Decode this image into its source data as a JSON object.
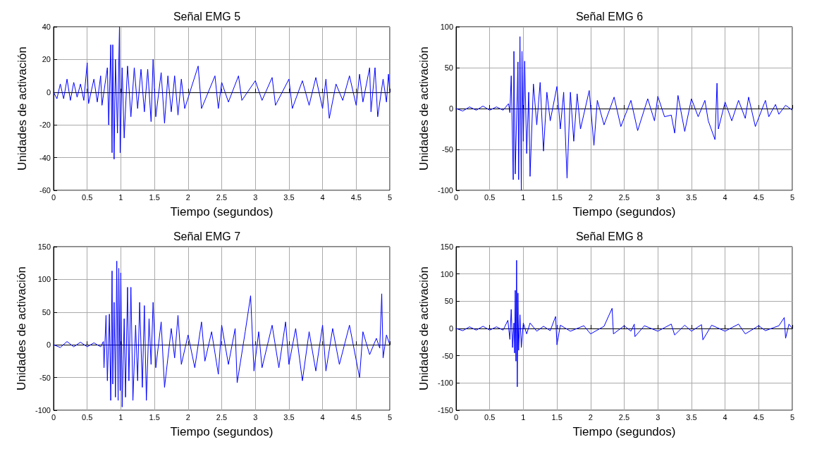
{
  "chart_data": [
    {
      "type": "line",
      "title": "Señal EMG 5",
      "xlabel": "Tiempo (segundos)",
      "ylabel": "Unidades de activación",
      "color": "#0000ff",
      "marker": "none",
      "line_style": "solid",
      "grid": true,
      "xlim": [
        0,
        5
      ],
      "xticks": [
        0,
        0.5,
        1,
        1.5,
        2,
        2.5,
        3,
        3.5,
        4,
        4.5,
        5
      ],
      "ylim": [
        -60,
        40
      ],
      "yticks": [
        -60,
        -40,
        -20,
        0,
        20,
        40
      ],
      "x": [
        0,
        0.05,
        0.1,
        0.15,
        0.2,
        0.25,
        0.3,
        0.35,
        0.4,
        0.45,
        0.5,
        0.52,
        0.6,
        0.65,
        0.7,
        0.72,
        0.8,
        0.82,
        0.85,
        0.87,
        0.88,
        0.9,
        0.92,
        0.95,
        0.98,
        0.99,
        1.02,
        1.05,
        1.1,
        1.15,
        1.2,
        1.25,
        1.3,
        1.35,
        1.4,
        1.45,
        1.48,
        1.52,
        1.6,
        1.65,
        1.7,
        1.75,
        1.8,
        1.85,
        1.9,
        1.95,
        2.15,
        2.2,
        2.4,
        2.45,
        2.5,
        2.6,
        2.75,
        2.8,
        3.0,
        3.1,
        3.25,
        3.3,
        3.5,
        3.55,
        3.7,
        3.8,
        3.9,
        4.0,
        4.05,
        4.1,
        4.2,
        4.3,
        4.4,
        4.5,
        4.55,
        4.6,
        4.7,
        4.72,
        4.78,
        4.82,
        4.9,
        4.95,
        4.98,
        5.0
      ],
      "values": [
        0,
        -4,
        5,
        -4,
        8,
        -5,
        6,
        -3,
        5,
        -5,
        18,
        -7,
        8,
        -6,
        10,
        -8,
        15,
        -20,
        29,
        -37,
        29,
        -41,
        20,
        -25,
        40,
        -37,
        15,
        -28,
        16,
        -15,
        15,
        -10,
        14,
        -12,
        14,
        -18,
        20,
        -15,
        12,
        -19,
        10,
        -12,
        10,
        -14,
        8,
        -10,
        16,
        -10,
        10,
        -10,
        6,
        -6,
        10,
        -5,
        7,
        -5,
        9,
        -8,
        8,
        -10,
        7,
        -8,
        9,
        -10,
        8,
        -16,
        5,
        -5,
        10,
        -8,
        11,
        -6,
        15,
        -12,
        15,
        -15,
        8,
        -6,
        11,
        0
      ]
    },
    {
      "type": "line",
      "title": "Señal EMG 6",
      "xlabel": "Tiempo (segundos)",
      "ylabel": "Unidades de activación",
      "color": "#0000ff",
      "marker": "none",
      "line_style": "solid",
      "grid": true,
      "xlim": [
        0,
        5
      ],
      "xticks": [
        0,
        0.5,
        1,
        1.5,
        2,
        2.5,
        3,
        3.5,
        4,
        4.5,
        5
      ],
      "ylim": [
        -100,
        100
      ],
      "yticks": [
        -100,
        -50,
        0,
        50,
        100
      ],
      "x": [
        0,
        0.1,
        0.2,
        0.3,
        0.4,
        0.5,
        0.6,
        0.7,
        0.78,
        0.8,
        0.82,
        0.85,
        0.86,
        0.88,
        0.92,
        0.93,
        0.95,
        0.97,
        0.98,
        1.0,
        1.02,
        1.05,
        1.08,
        1.1,
        1.15,
        1.2,
        1.25,
        1.3,
        1.35,
        1.4,
        1.5,
        1.55,
        1.6,
        1.65,
        1.7,
        1.75,
        1.8,
        1.85,
        1.98,
        2.05,
        2.1,
        2.2,
        2.35,
        2.45,
        2.6,
        2.7,
        2.85,
        2.95,
        3.0,
        3.1,
        3.2,
        3.25,
        3.3,
        3.4,
        3.5,
        3.6,
        3.7,
        3.75,
        3.85,
        3.88,
        3.9,
        4.0,
        4.1,
        4.2,
        4.3,
        4.35,
        4.45,
        4.6,
        4.65,
        4.75,
        4.8,
        4.9,
        5.0
      ],
      "values": [
        0,
        -3,
        2,
        -2,
        3,
        -2,
        2,
        -2,
        6,
        -5,
        40,
        -87,
        70,
        -80,
        57,
        -87,
        88,
        -100,
        70,
        -40,
        58,
        -55,
        20,
        -83,
        30,
        -20,
        32,
        -52,
        20,
        -15,
        27,
        -25,
        20,
        -85,
        20,
        -40,
        18,
        -25,
        22,
        -45,
        10,
        -20,
        14,
        -22,
        10,
        -27,
        12,
        -15,
        15,
        -10,
        -8,
        -30,
        16,
        -28,
        12,
        -10,
        10,
        -15,
        -38,
        31,
        -25,
        8,
        -15,
        10,
        -12,
        14,
        -22,
        10,
        -10,
        5,
        -7,
        4,
        -2
      ]
    },
    {
      "type": "line",
      "title": "Señal EMG 7",
      "xlabel": "Tiempo (segundos)",
      "ylabel": "Unidades de activación",
      "color": "#0000ff",
      "marker": "none",
      "line_style": "solid",
      "grid": true,
      "xlim": [
        0,
        5
      ],
      "xticks": [
        0,
        0.5,
        1,
        1.5,
        2,
        2.5,
        3,
        3.5,
        4,
        4.5,
        5
      ],
      "ylim": [
        -100,
        150
      ],
      "yticks": [
        -100,
        -50,
        0,
        50,
        100,
        150
      ],
      "x": [
        0,
        0.1,
        0.2,
        0.3,
        0.4,
        0.5,
        0.6,
        0.7,
        0.74,
        0.75,
        0.78,
        0.8,
        0.83,
        0.85,
        0.87,
        0.88,
        0.9,
        0.92,
        0.94,
        0.96,
        0.97,
        0.99,
        1.0,
        1.02,
        1.05,
        1.07,
        1.1,
        1.12,
        1.15,
        1.18,
        1.22,
        1.25,
        1.28,
        1.32,
        1.35,
        1.38,
        1.42,
        1.45,
        1.48,
        1.52,
        1.6,
        1.65,
        1.75,
        1.8,
        1.85,
        1.9,
        2.0,
        2.1,
        2.2,
        2.25,
        2.35,
        2.45,
        2.5,
        2.6,
        2.7,
        2.73,
        2.85,
        2.93,
        2.98,
        3.05,
        3.1,
        3.25,
        3.35,
        3.45,
        3.5,
        3.6,
        3.7,
        3.8,
        3.9,
        4.0,
        4.05,
        4.15,
        4.25,
        4.4,
        4.55,
        4.6,
        4.7,
        4.8,
        4.85,
        4.88,
        4.9,
        4.95,
        5.0
      ],
      "values": [
        0,
        -4,
        5,
        -3,
        4,
        -3,
        3,
        -3,
        5,
        -35,
        45,
        -55,
        47,
        -85,
        113,
        -60,
        65,
        -80,
        128,
        -85,
        117,
        -70,
        110,
        -95,
        40,
        -80,
        88,
        -55,
        88,
        -85,
        30,
        -55,
        65,
        -65,
        60,
        -85,
        40,
        -30,
        65,
        -35,
        35,
        -65,
        25,
        -20,
        45,
        -30,
        15,
        -35,
        35,
        -25,
        20,
        -45,
        30,
        -30,
        25,
        -58,
        20,
        75,
        -40,
        20,
        -35,
        30,
        -35,
        35,
        -30,
        25,
        -55,
        20,
        -40,
        30,
        -40,
        25,
        -30,
        30,
        -50,
        20,
        -15,
        10,
        -5,
        78,
        -20,
        15,
        0
      ]
    },
    {
      "type": "line",
      "title": "Señal EMG 8",
      "xlabel": "Tiempo (segundos)",
      "ylabel": "Unidades de activación",
      "color": "#0000ff",
      "marker": "none",
      "line_style": "solid",
      "grid": true,
      "xlim": [
        0,
        5
      ],
      "xticks": [
        0,
        0.5,
        1,
        1.5,
        2,
        2.5,
        3,
        3.5,
        4,
        4.5,
        5
      ],
      "ylim": [
        -150,
        150
      ],
      "yticks": [
        -150,
        -100,
        -50,
        0,
        50,
        100,
        150
      ],
      "x": [
        0,
        0.1,
        0.2,
        0.3,
        0.4,
        0.5,
        0.6,
        0.7,
        0.77,
        0.8,
        0.82,
        0.84,
        0.86,
        0.87,
        0.88,
        0.89,
        0.9,
        0.91,
        0.92,
        0.93,
        0.95,
        0.97,
        1.0,
        1.05,
        1.1,
        1.2,
        1.3,
        1.4,
        1.48,
        1.5,
        1.55,
        1.7,
        1.9,
        2.0,
        2.2,
        2.32,
        2.34,
        2.5,
        2.6,
        2.65,
        2.66,
        2.8,
        3.0,
        3.2,
        3.25,
        3.4,
        3.5,
        3.65,
        3.67,
        3.8,
        4.0,
        4.2,
        4.3,
        4.5,
        4.6,
        4.8,
        4.88,
        4.9,
        4.95,
        5.0
      ],
      "values": [
        0,
        -4,
        3,
        -3,
        4,
        -3,
        3,
        -3,
        15,
        -20,
        35,
        -35,
        10,
        -45,
        70,
        -60,
        125,
        -107,
        65,
        -40,
        25,
        -35,
        10,
        -10,
        10,
        -5,
        4,
        -4,
        22,
        -30,
        6,
        -5,
        5,
        -10,
        4,
        37,
        -10,
        5,
        -5,
        8,
        -15,
        5,
        -5,
        8,
        -12,
        6,
        -5,
        7,
        -21,
        6,
        -5,
        8,
        -10,
        5,
        -4,
        5,
        20,
        -18,
        8,
        0
      ]
    }
  ]
}
